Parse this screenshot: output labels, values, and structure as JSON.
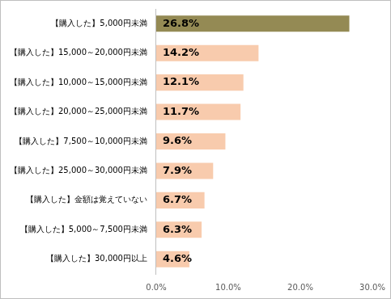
{
  "chart_data": {
    "type": "bar",
    "orientation": "horizontal",
    "categories": [
      "【購入した】5,000円未満",
      "【購入した】15,000～20,000円未満",
      "【購入した】10,000～15,000円未満",
      "【購入した】20,000～25,000円未満",
      "【購入した】7,500～10,000円未満",
      "【購入した】25,000～30,000円未満",
      "【購入した】金額は覚えていない",
      "【購入した】5,000～7,500円未満",
      "【購入した】30,000円以上"
    ],
    "values": [
      26.8,
      14.2,
      12.1,
      11.7,
      9.6,
      7.9,
      6.7,
      6.3,
      4.6
    ],
    "value_labels": [
      "26.8%",
      "14.2%",
      "12.1%",
      "11.7%",
      "9.6%",
      "7.9%",
      "6.7%",
      "6.3%",
      "4.6%"
    ],
    "colors": [
      "#948a54",
      "#f8cbad",
      "#f8cbad",
      "#f8cbad",
      "#f8cbad",
      "#f8cbad",
      "#f8cbad",
      "#f8cbad",
      "#f8cbad"
    ],
    "xlim": [
      0,
      30
    ],
    "xticks": [
      {
        "value": 0,
        "label": "0.0%"
      },
      {
        "value": 10,
        "label": "10.0%"
      },
      {
        "value": 20,
        "label": "20.0%"
      },
      {
        "value": 30,
        "label": "30.0%"
      }
    ],
    "grid": false,
    "data_labels": true
  }
}
